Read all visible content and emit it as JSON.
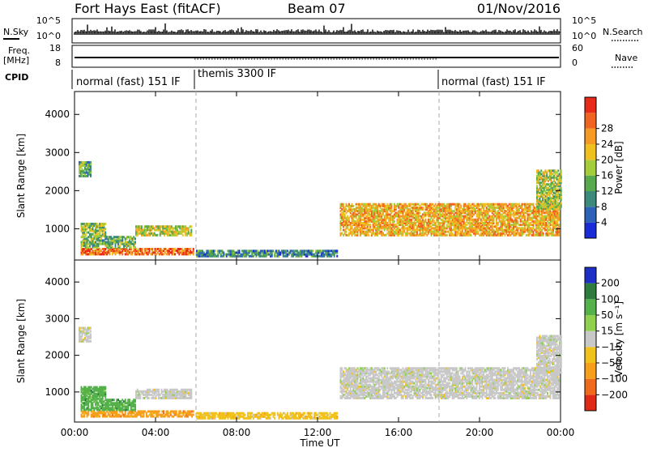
{
  "header": {
    "station": "Fort Hays East (fitACF)",
    "beam": "Beam 07",
    "date": "01/Nov/2016"
  },
  "strips": {
    "noise": {
      "left_label": "N.Sky",
      "right_label": "N.Search",
      "left_ticks": [
        "10^5",
        "10^0"
      ],
      "right_ticks": [
        "10^5",
        "10^0"
      ]
    },
    "freq": {
      "left_label_top": "Freq.",
      "left_label_bottom": "[MHz]",
      "right_label": "Nave",
      "left_ticks": [
        "18",
        "8"
      ],
      "right_ticks": [
        "60",
        "0"
      ]
    },
    "cpid": {
      "label": "CPID",
      "modes": [
        {
          "name": "normal (fast) 151 IF",
          "start_hour": 0
        },
        {
          "name": "themis 3300 IF",
          "start_hour": 6
        },
        {
          "name": "normal (fast) 151 IF",
          "start_hour": 18
        }
      ]
    }
  },
  "chart_data": [
    {
      "type": "heatmap",
      "title": "",
      "xlabel": "",
      "ylabel": "Slant Range [km]",
      "xlim": [
        0,
        24
      ],
      "ylim": [
        180,
        4600
      ],
      "y_ticks": [
        1000,
        2000,
        3000,
        4000
      ],
      "colorbar": {
        "label": "Power [dB]",
        "ticks": [
          "4",
          "8",
          "12",
          "16",
          "20",
          "24",
          "28"
        ],
        "colors": [
          "#1a2bd8",
          "#2c63b8",
          "#3b8a7c",
          "#58a84e",
          "#a5cc3a",
          "#f0c020",
          "#f59b25",
          "#ee6420",
          "#e82a18"
        ]
      },
      "regions": [
        {
          "t0": 0.3,
          "t1": 5.9,
          "r0": 300,
          "r1": 480,
          "level": 0.85
        },
        {
          "t0": 0.3,
          "t1": 3.0,
          "r0": 480,
          "r1": 760,
          "level": 0.4
        },
        {
          "t0": 0.3,
          "t1": 1.5,
          "r0": 780,
          "r1": 1100,
          "level": 0.45
        },
        {
          "t0": 3.0,
          "t1": 5.8,
          "r0": 800,
          "r1": 1050,
          "level": 0.55
        },
        {
          "t0": 0.2,
          "t1": 0.8,
          "r0": 2350,
          "r1": 2750,
          "level": 0.35
        },
        {
          "t0": 6.0,
          "t1": 13.0,
          "r0": 250,
          "r1": 420,
          "level": 0.25
        },
        {
          "t0": 13.1,
          "t1": 23.9,
          "r0": 800,
          "r1": 1650,
          "level": 0.7
        },
        {
          "t0": 22.8,
          "t1": 24.0,
          "r0": 1500,
          "r1": 2500,
          "level": 0.5
        }
      ]
    },
    {
      "type": "heatmap",
      "title": "",
      "xlabel": "Time UT",
      "ylabel": "Slant Range [km]",
      "xlim": [
        0,
        24
      ],
      "ylim": [
        180,
        4600
      ],
      "x_ticks": [
        "00:00",
        "04:00",
        "08:00",
        "12:00",
        "16:00",
        "20:00",
        "00:00"
      ],
      "y_ticks": [
        1000,
        2000,
        3000,
        4000
      ],
      "colorbar": {
        "label": "Velocity [m s⁻¹]",
        "ticks": [
          "200",
          "100",
          "50",
          "15",
          "−15",
          "−50",
          "−100",
          "−200"
        ],
        "colors": [
          "#1e2fc8",
          "#2e7b3e",
          "#55b14a",
          "#8fd14e",
          "#c8c8c8",
          "#f2c21c",
          "#f59f1d",
          "#ef6a1d",
          "#e02a18"
        ]
      },
      "regions": [
        {
          "t0": 0.3,
          "t1": 5.9,
          "r0": 300,
          "r1": 480,
          "level": "neg50"
        },
        {
          "t0": 0.3,
          "t1": 3.0,
          "r0": 480,
          "r1": 760,
          "level": "pos50"
        },
        {
          "t0": 0.3,
          "t1": 1.5,
          "r0": 780,
          "r1": 1100,
          "level": "pos50"
        },
        {
          "t0": 3.0,
          "t1": 5.8,
          "r0": 800,
          "r1": 1050,
          "level": "grey"
        },
        {
          "t0": 0.2,
          "t1": 0.8,
          "r0": 2350,
          "r1": 2750,
          "level": "grey"
        },
        {
          "t0": 6.0,
          "t1": 13.0,
          "r0": 250,
          "r1": 420,
          "level": "neg15"
        },
        {
          "t0": 13.1,
          "t1": 23.9,
          "r0": 800,
          "r1": 1650,
          "level": "grey"
        },
        {
          "t0": 22.8,
          "t1": 24.0,
          "r0": 1500,
          "r1": 2500,
          "level": "grey"
        }
      ]
    }
  ]
}
